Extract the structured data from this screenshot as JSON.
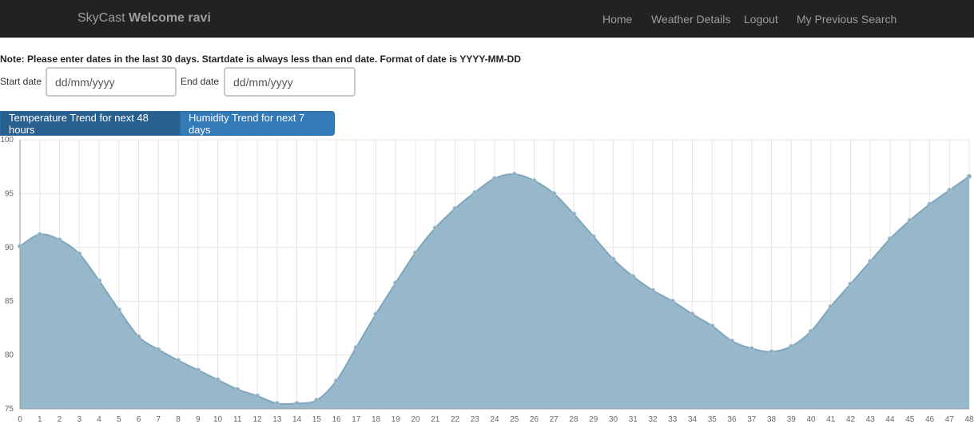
{
  "nav": {
    "brand_prefix": "SkyCast",
    "brand_welcome": "Welcome ravi",
    "home": "Home",
    "weather_details": "Weather Details",
    "logout": "Logout",
    "previous_search": "My Previous Search"
  },
  "note": "Note: Please enter dates in the last 30 days. Startdate is always less than end date. Format of date is YYYY-MM-DD",
  "form": {
    "start_label": "Start date",
    "start_placeholder": "dd/mm/yyyy",
    "end_label": "End date",
    "end_placeholder": "dd/mm/yyyy"
  },
  "tabs": {
    "temperature": "Temperature Trend for next 48 hours",
    "humidity": "Humidity Trend for next 7 days"
  },
  "colors": {
    "navbar_bg": "#222222",
    "tab_active": "#286090",
    "tab_inactive": "#337ab7",
    "area_fill": "#97b8ca",
    "area_line": "#7fa6bc",
    "point": "#8eaec0"
  },
  "chart_data": {
    "type": "area",
    "x": [
      0,
      1,
      2,
      3,
      4,
      5,
      6,
      7,
      8,
      9,
      10,
      11,
      12,
      13,
      14,
      15,
      16,
      17,
      18,
      19,
      20,
      21,
      22,
      23,
      24,
      25,
      26,
      27,
      28,
      29,
      30,
      31,
      32,
      33,
      34,
      35,
      36,
      37,
      38,
      39,
      40,
      41,
      42,
      43,
      44,
      45,
      46,
      47,
      48
    ],
    "values": [
      90.1,
      91.2,
      90.7,
      89.4,
      86.9,
      84.2,
      81.7,
      80.5,
      79.5,
      78.6,
      77.7,
      76.8,
      76.2,
      75.5,
      75.5,
      75.8,
      77.6,
      80.7,
      83.8,
      86.7,
      89.5,
      91.8,
      93.6,
      95.1,
      96.4,
      96.8,
      96.2,
      95.0,
      93.1,
      91.0,
      88.9,
      87.3,
      86.0,
      85.0,
      83.8,
      82.7,
      81.3,
      80.6,
      80.3,
      80.8,
      82.2,
      84.5,
      86.6,
      88.7,
      90.8,
      92.5,
      94.0,
      95.3,
      96.6
    ],
    "ylim": [
      75,
      100
    ],
    "yticks": [
      75,
      80,
      85,
      90,
      95,
      100
    ],
    "grid": true,
    "legend": "none"
  }
}
